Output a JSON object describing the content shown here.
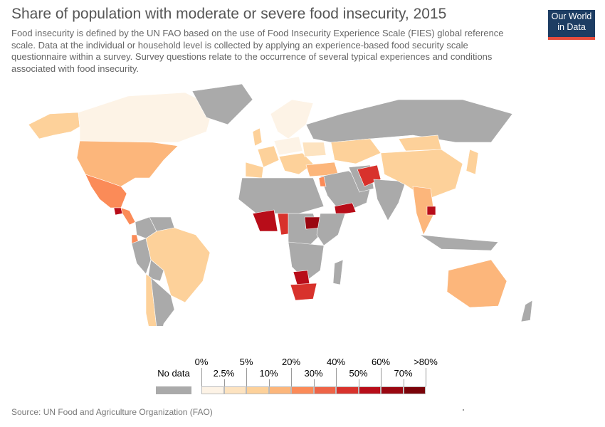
{
  "title": "Share of population with moderate or severe food insecurity, 2015",
  "subtitle": "Food insecurity is defined by the UN FAO based on the use of Food Insecurity Experience Scale (FIES) global reference scale. Data at the individual or household level is collected by applying an experience-based food security scale questionnaire within a survey. Survey questions relate to the occurrence of several typical experiences and conditions associated with food insecurity.",
  "logo": {
    "line1": "Our World",
    "line2": "in Data"
  },
  "source": "Source: UN Food and Agriculture Organization (FAO)",
  "colors": {
    "no_data": "#aaaaaa",
    "border": "#ffffff",
    "logo_bg": "#1d3d63",
    "logo_accent": "#e74c3c"
  },
  "legend": {
    "no_data_label": "No data",
    "bins": [
      {
        "label": "0%",
        "color": "#fdf3e6"
      },
      {
        "label": "2.5%",
        "color": "#fde3c0"
      },
      {
        "label": "5%",
        "color": "#fdd19a"
      },
      {
        "label": "10%",
        "color": "#fcb67b"
      },
      {
        "label": "20%",
        "color": "#fb8b58"
      },
      {
        "label": "30%",
        "color": "#ee6447"
      },
      {
        "label": "40%",
        "color": "#d8322c"
      },
      {
        "label": "50%",
        "color": "#b80d19"
      },
      {
        "label": "60%",
        "color": "#9a0711"
      },
      {
        "label": "70%",
        "color": "#7a0309"
      }
    ],
    "last_label": ">80%"
  }
}
